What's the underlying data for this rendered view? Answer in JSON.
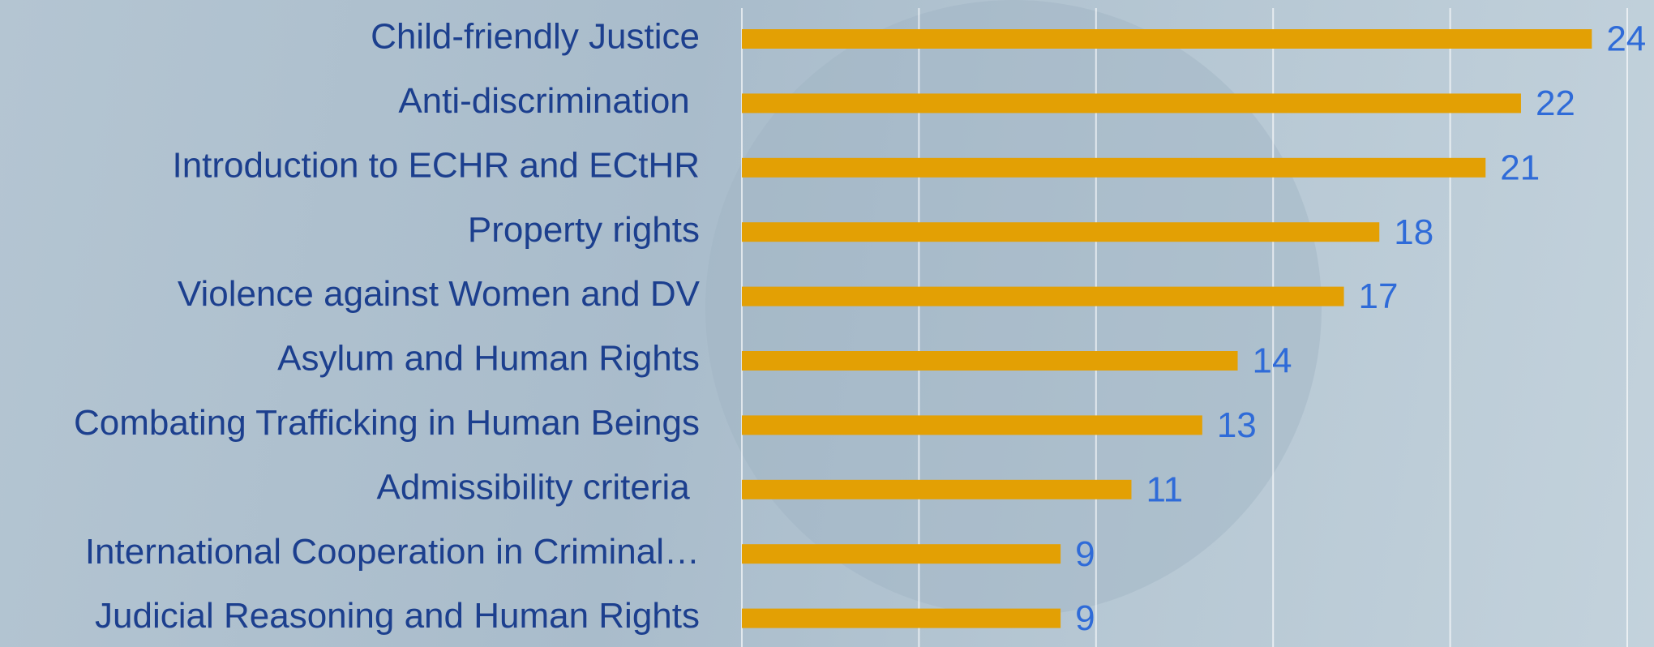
{
  "chart_data": {
    "type": "barh",
    "categories": [
      "Child-friendly Justice",
      "Anti-discrimination ",
      "Introduction to ECHR and ECtHR",
      "Property rights",
      "Violence against Women and DV",
      "Asylum and Human Rights",
      "Combating Trafficking in Human Beings",
      "Admissibility criteria ",
      "International Cooperation in Criminal…",
      "Judicial Reasoning and Human Rights"
    ],
    "values": [
      24,
      22,
      21,
      18,
      17,
      14,
      13,
      11,
      9,
      9
    ],
    "color": "#e3a004",
    "xlim": [
      0,
      25
    ],
    "xticks": [
      0,
      5,
      10,
      15,
      20,
      25
    ],
    "grid": true
  }
}
